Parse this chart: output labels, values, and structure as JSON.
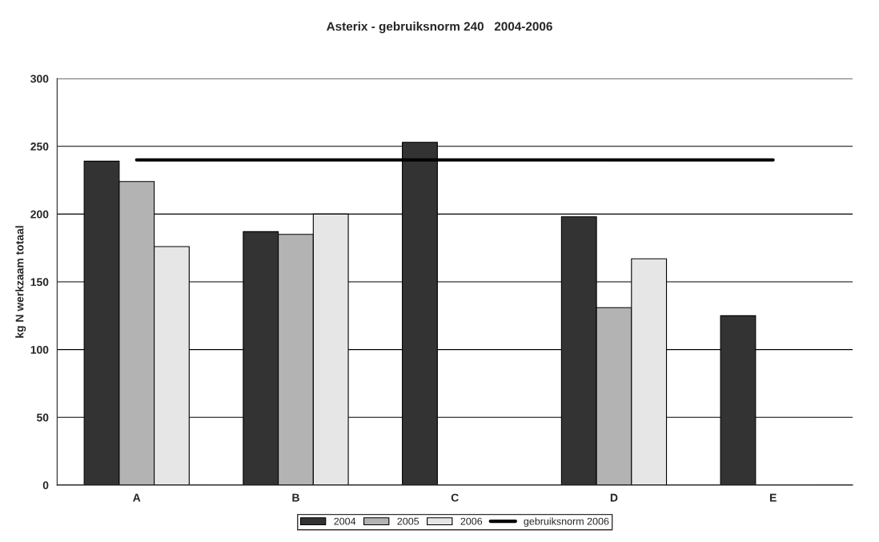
{
  "chart_data": {
    "type": "bar",
    "title": "Asterix - gebruiksnorm 240   2004-2006",
    "ylabel": "kg N werkzaam totaal",
    "categories": [
      "A",
      "B",
      "C",
      "D",
      "E"
    ],
    "series": [
      {
        "name": "2004",
        "color": "#333333",
        "values": [
          239,
          187,
          253,
          198,
          125
        ]
      },
      {
        "name": "2005",
        "color": "#b3b3b3",
        "values": [
          224,
          185,
          null,
          131,
          null
        ]
      },
      {
        "name": "2006",
        "color": "#e6e6e6",
        "values": [
          176,
          200,
          null,
          167,
          null
        ]
      },
      {
        "name": "gebruiksnorm 2006",
        "type": "line",
        "color": "#000000",
        "values": [
          240,
          240,
          240,
          240,
          240
        ]
      }
    ],
    "ylim": [
      0,
      300
    ],
    "yticks": [
      0,
      50,
      100,
      150,
      200,
      250,
      300
    ],
    "grid": "y",
    "legend": "bottom"
  }
}
